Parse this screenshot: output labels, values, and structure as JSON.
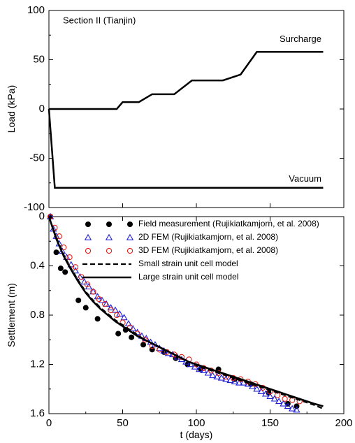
{
  "chart_data": [
    {
      "type": "line",
      "annotation": "Section II (Tianjin)",
      "ylabel": "Load (kPa)",
      "xlim": [
        0,
        200
      ],
      "ylim": [
        -100,
        100
      ],
      "yticks": [
        -100,
        -50,
        0,
        50,
        100
      ],
      "ytick_labels": [
        "-100",
        "-50",
        "0",
        "50",
        "100"
      ],
      "grid": false,
      "series": [
        {
          "name": "Surcharge",
          "x": [
            0,
            46,
            50,
            61,
            70,
            85,
            97,
            118,
            130,
            141,
            186
          ],
          "y": [
            0,
            0,
            7,
            7,
            15,
            15,
            29,
            29,
            35,
            58,
            58
          ]
        },
        {
          "name": "Vacuum",
          "x": [
            0,
            4,
            186
          ],
          "y": [
            0,
            -80,
            -80
          ]
        }
      ]
    },
    {
      "type": "line",
      "xlabel": "t (days)",
      "ylabel": "Settlement (m)",
      "xlim": [
        0,
        200
      ],
      "ylim": [
        0,
        1.6
      ],
      "y_inverted": true,
      "xticks": [
        0,
        50,
        100,
        150,
        200
      ],
      "xtick_labels": [
        "0",
        "50",
        "100",
        "150",
        "200"
      ],
      "yticks": [
        0,
        0.4,
        0.8,
        1.2,
        1.6
      ],
      "ytick_labels": [
        "0",
        "0.4",
        "0.8",
        "1.2",
        "1.6"
      ],
      "grid": false,
      "legend_position": "top-right",
      "series": [
        {
          "name": "Field measurement (Rujikiatkamjorn, et al. 2008)",
          "marker": "filled-circle",
          "color": "#000000",
          "x": [
            1,
            5,
            8,
            11,
            20,
            25,
            33,
            47,
            52,
            56,
            64,
            70,
            78,
            86,
            94,
            103,
            115,
            126,
            137,
            149,
            162,
            168
          ],
          "y": [
            0.0,
            0.29,
            0.42,
            0.45,
            0.68,
            0.74,
            0.83,
            0.95,
            0.92,
            0.98,
            1.04,
            1.08,
            1.1,
            1.15,
            1.2,
            1.24,
            1.24,
            1.32,
            1.36,
            1.43,
            1.52,
            1.54
          ]
        },
        {
          "name": "2D FEM (Rujikiatkamjorn, et al. 2008)",
          "marker": "open-triangle",
          "color": "#1f1fd6",
          "x": [
            1,
            3,
            5,
            7,
            9,
            12,
            15,
            18,
            21,
            24,
            27,
            30,
            33,
            36,
            39,
            42,
            45,
            48,
            51,
            54,
            57,
            60,
            63,
            66,
            69,
            72,
            75,
            78,
            81,
            84,
            87,
            90,
            93,
            96,
            99,
            102,
            105,
            108,
            111,
            114,
            117,
            120,
            123,
            126,
            129,
            132,
            135,
            138,
            141,
            144,
            147,
            150,
            153,
            156,
            159,
            162,
            165,
            168
          ],
          "y": [
            0.0,
            0.1,
            0.16,
            0.22,
            0.28,
            0.33,
            0.39,
            0.44,
            0.49,
            0.53,
            0.57,
            0.61,
            0.65,
            0.68,
            0.71,
            0.74,
            0.76,
            0.79,
            0.82,
            0.87,
            0.91,
            0.94,
            0.97,
            0.99,
            1.02,
            1.04,
            1.07,
            1.09,
            1.11,
            1.12,
            1.14,
            1.16,
            1.18,
            1.2,
            1.22,
            1.24,
            1.25,
            1.27,
            1.29,
            1.3,
            1.31,
            1.32,
            1.33,
            1.34,
            1.35,
            1.35,
            1.36,
            1.38,
            1.4,
            1.42,
            1.44,
            1.46,
            1.48,
            1.5,
            1.52,
            1.54,
            1.56,
            1.57
          ]
        },
        {
          "name": "3D FEM (Rujikiatkamjorn, et al. 2008)",
          "marker": "open-circle",
          "color": "#e0231a",
          "x": [
            1,
            4,
            7,
            10,
            14,
            18,
            22,
            26,
            30,
            34,
            38,
            42,
            46,
            50,
            55,
            60,
            65,
            70,
            75,
            80,
            85,
            90,
            95,
            100,
            105,
            110,
            115,
            120,
            125,
            130,
            135,
            140,
            145,
            150,
            155,
            160,
            165,
            170
          ],
          "y": [
            0.0,
            0.09,
            0.16,
            0.25,
            0.33,
            0.41,
            0.49,
            0.55,
            0.61,
            0.67,
            0.71,
            0.76,
            0.8,
            0.86,
            0.9,
            0.95,
            1.0,
            1.05,
            1.08,
            1.1,
            1.12,
            1.14,
            1.16,
            1.2,
            1.23,
            1.25,
            1.27,
            1.3,
            1.31,
            1.32,
            1.34,
            1.36,
            1.39,
            1.42,
            1.45,
            1.48,
            1.49,
            1.5
          ]
        },
        {
          "name": "Small strain unit cell model",
          "line_style": "dashed",
          "color": "#000000",
          "x": [
            0,
            5,
            10,
            15,
            20,
            25,
            30,
            35,
            40,
            45,
            50,
            55,
            60,
            65,
            70,
            75,
            80,
            85,
            90,
            95,
            100,
            105,
            110,
            115,
            120,
            125,
            130,
            135,
            140,
            145,
            150,
            155,
            160,
            165,
            170,
            175,
            180,
            186
          ],
          "y": [
            0.0,
            0.17,
            0.31,
            0.42,
            0.52,
            0.61,
            0.68,
            0.74,
            0.79,
            0.84,
            0.88,
            0.92,
            0.96,
            1.0,
            1.03,
            1.06,
            1.09,
            1.12,
            1.15,
            1.18,
            1.21,
            1.23,
            1.25,
            1.27,
            1.29,
            1.31,
            1.33,
            1.35,
            1.37,
            1.39,
            1.41,
            1.43,
            1.45,
            1.47,
            1.49,
            1.51,
            1.53,
            1.56
          ]
        },
        {
          "name": "Large strain unit cell model",
          "line_style": "solid",
          "color": "#000000",
          "x": [
            0,
            5,
            10,
            15,
            20,
            25,
            30,
            35,
            40,
            45,
            50,
            55,
            60,
            65,
            70,
            75,
            80,
            85,
            90,
            95,
            100,
            105,
            110,
            115,
            120,
            125,
            130,
            135,
            140,
            145,
            150,
            155,
            160,
            165,
            170,
            175,
            180,
            186
          ],
          "y": [
            0.0,
            0.18,
            0.32,
            0.43,
            0.53,
            0.62,
            0.69,
            0.75,
            0.8,
            0.85,
            0.89,
            0.93,
            0.97,
            1.0,
            1.03,
            1.06,
            1.09,
            1.12,
            1.15,
            1.18,
            1.2,
            1.22,
            1.24,
            1.26,
            1.28,
            1.3,
            1.32,
            1.34,
            1.36,
            1.38,
            1.4,
            1.42,
            1.44,
            1.46,
            1.48,
            1.5,
            1.52,
            1.54
          ]
        }
      ]
    }
  ]
}
